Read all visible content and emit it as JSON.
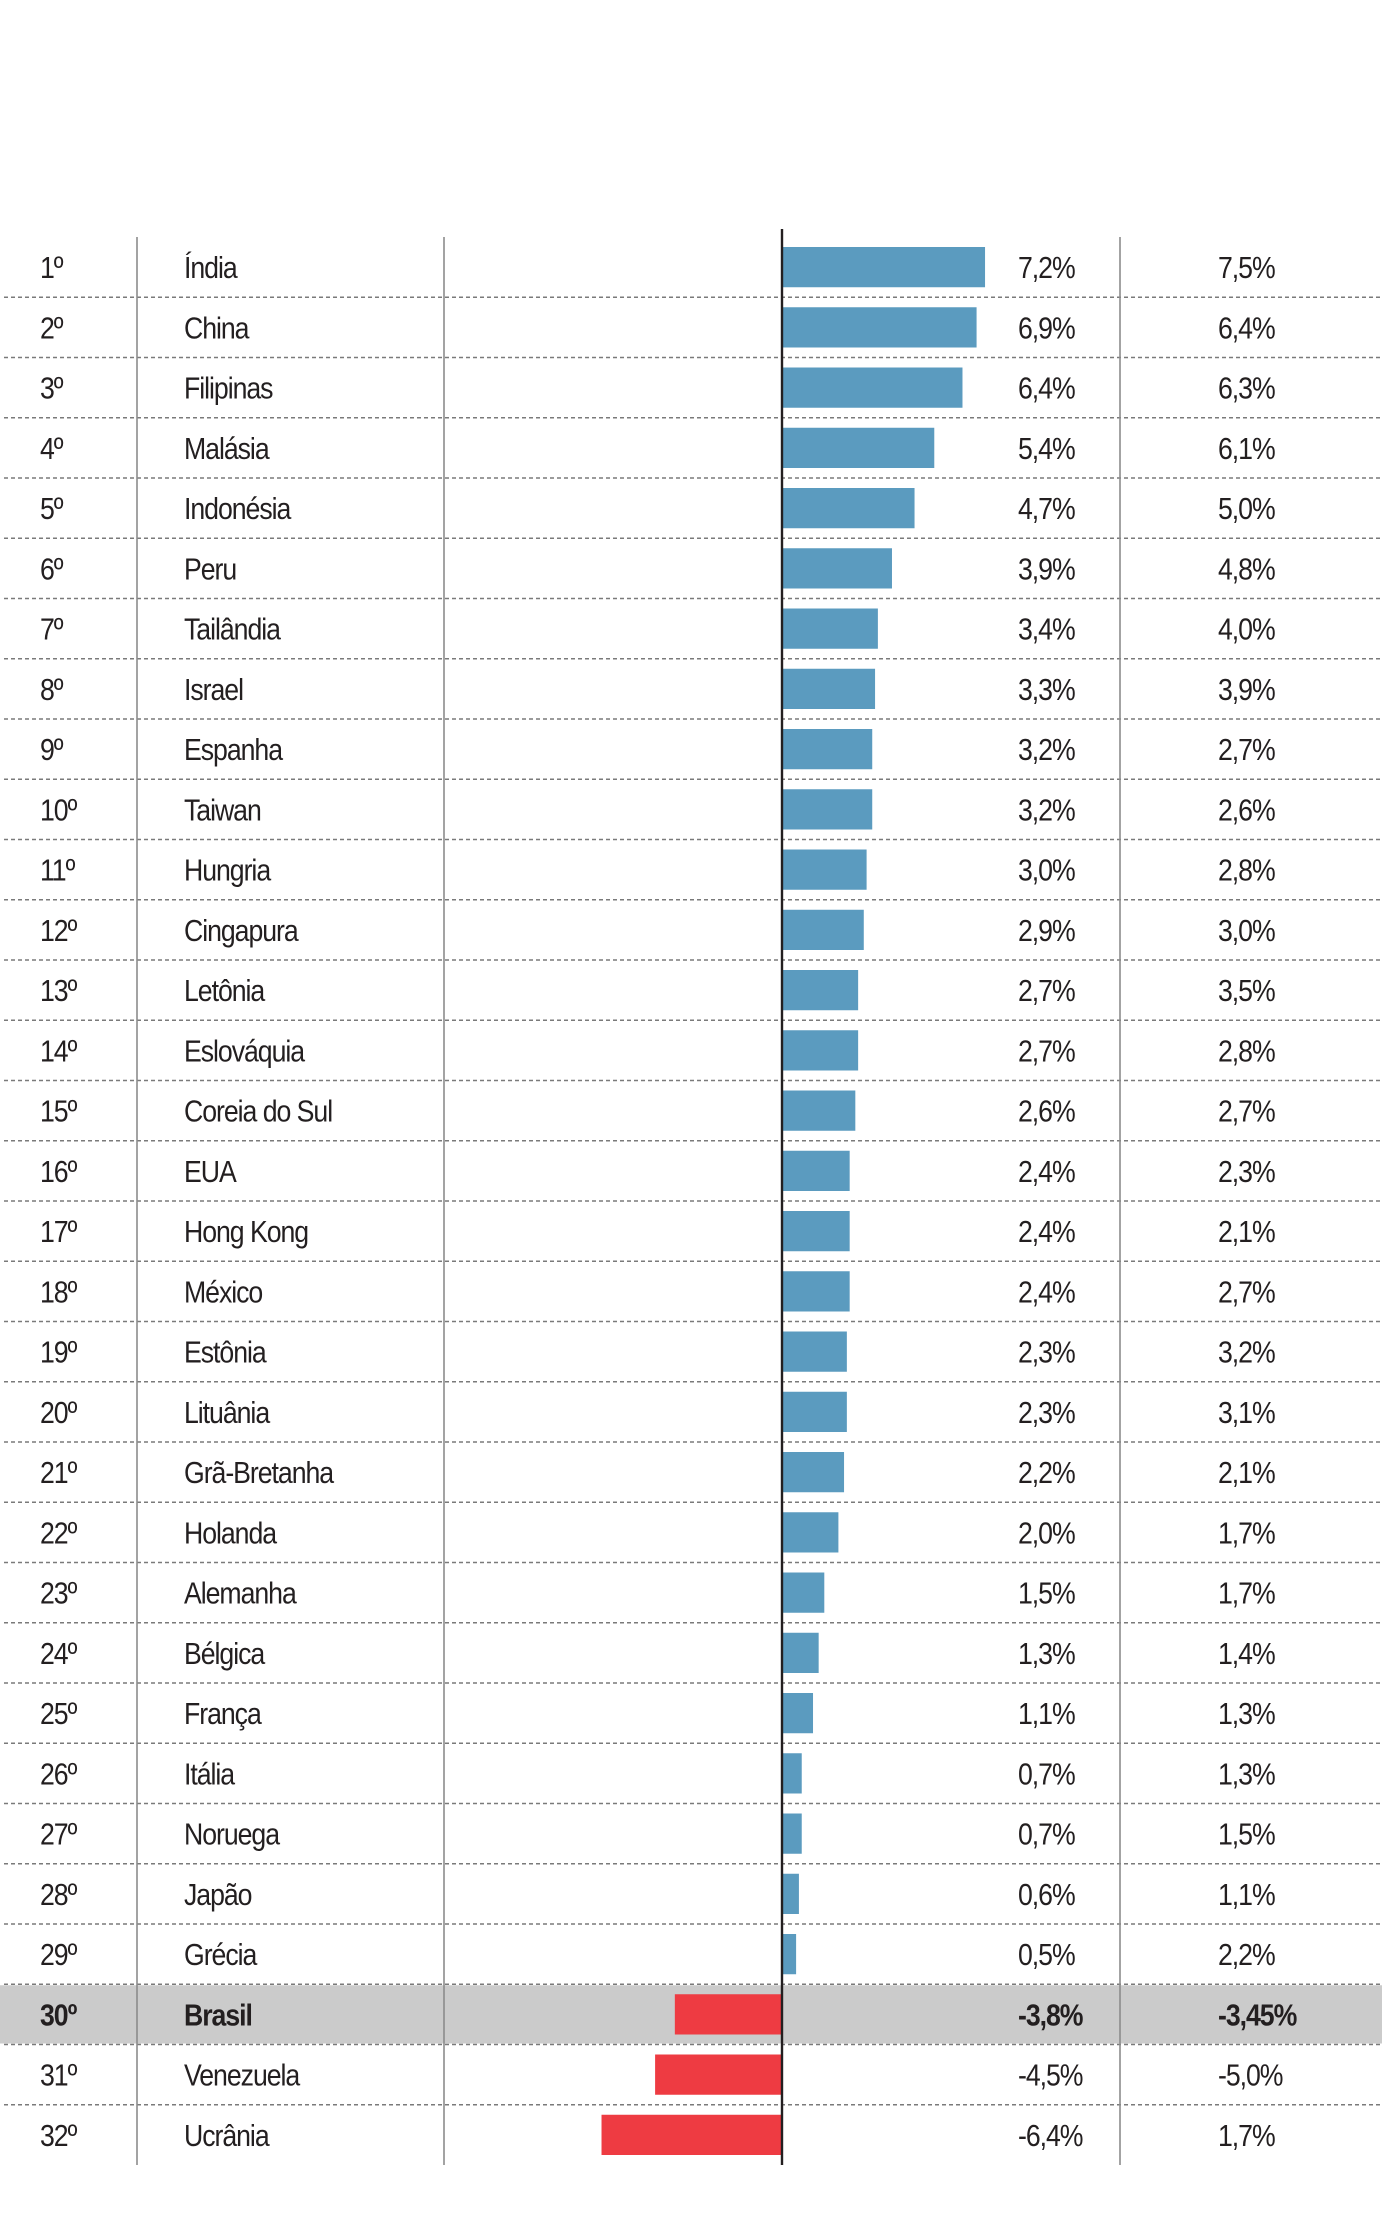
{
  "colors": {
    "positive": "#5b9bbf",
    "negative": "#ee3b42",
    "highlight_row": "#cbcbcb",
    "text": "#231f20",
    "grid": "#7a7a7a"
  },
  "chart_data": {
    "type": "bar",
    "orientation": "horizontal",
    "highlight": "Brasil",
    "rows": [
      {
        "rank": "1º",
        "country": "Índia",
        "value": 7.2,
        "value_label": "7,2%",
        "value2_label": "7,5%"
      },
      {
        "rank": "2º",
        "country": "China",
        "value": 6.9,
        "value_label": "6,9%",
        "value2_label": "6,4%"
      },
      {
        "rank": "3º",
        "country": "Filipinas",
        "value": 6.4,
        "value_label": "6,4%",
        "value2_label": "6,3%"
      },
      {
        "rank": "4º",
        "country": "Malásia",
        "value": 5.4,
        "value_label": "5,4%",
        "value2_label": "6,1%"
      },
      {
        "rank": "5º",
        "country": "Indonésia",
        "value": 4.7,
        "value_label": "4,7%",
        "value2_label": "5,0%"
      },
      {
        "rank": "6º",
        "country": "Peru",
        "value": 3.9,
        "value_label": "3,9%",
        "value2_label": "4,8%"
      },
      {
        "rank": "7º",
        "country": "Tailândia",
        "value": 3.4,
        "value_label": "3,4%",
        "value2_label": "4,0%"
      },
      {
        "rank": "8º",
        "country": "Israel",
        "value": 3.3,
        "value_label": "3,3%",
        "value2_label": "3,9%"
      },
      {
        "rank": "9º",
        "country": "Espanha",
        "value": 3.2,
        "value_label": "3,2%",
        "value2_label": "2,7%"
      },
      {
        "rank": "10º",
        "country": "Taiwan",
        "value": 3.2,
        "value_label": "3,2%",
        "value2_label": "2,6%"
      },
      {
        "rank": "11º",
        "country": "Hungria",
        "value": 3.0,
        "value_label": "3,0%",
        "value2_label": "2,8%"
      },
      {
        "rank": "12º",
        "country": "Cingapura",
        "value": 2.9,
        "value_label": "2,9%",
        "value2_label": "3,0%"
      },
      {
        "rank": "13º",
        "country": "Letônia",
        "value": 2.7,
        "value_label": "2,7%",
        "value2_label": "3,5%"
      },
      {
        "rank": "14º",
        "country": "Eslováquia",
        "value": 2.7,
        "value_label": "2,7%",
        "value2_label": "2,8%"
      },
      {
        "rank": "15º",
        "country": "Coreia do Sul",
        "value": 2.6,
        "value_label": "2,6%",
        "value2_label": "2,7%"
      },
      {
        "rank": "16º",
        "country": "EUA",
        "value": 2.4,
        "value_label": "2,4%",
        "value2_label": "2,3%"
      },
      {
        "rank": "17º",
        "country": "Hong Kong",
        "value": 2.4,
        "value_label": "2,4%",
        "value2_label": "2,1%"
      },
      {
        "rank": "18º",
        "country": "México",
        "value": 2.4,
        "value_label": "2,4%",
        "value2_label": "2,7%"
      },
      {
        "rank": "19º",
        "country": "Estônia",
        "value": 2.3,
        "value_label": "2,3%",
        "value2_label": "3,2%"
      },
      {
        "rank": "20º",
        "country": "Lituânia",
        "value": 2.3,
        "value_label": "2,3%",
        "value2_label": "3,1%"
      },
      {
        "rank": "21º",
        "country": "Grã-Bretanha",
        "value": 2.2,
        "value_label": "2,2%",
        "value2_label": "2,1%"
      },
      {
        "rank": "22º",
        "country": "Holanda",
        "value": 2.0,
        "value_label": "2,0%",
        "value2_label": "1,7%"
      },
      {
        "rank": "23º",
        "country": "Alemanha",
        "value": 1.5,
        "value_label": "1,5%",
        "value2_label": "1,7%"
      },
      {
        "rank": "24º",
        "country": "Bélgica",
        "value": 1.3,
        "value_label": "1,3%",
        "value2_label": "1,4%"
      },
      {
        "rank": "25º",
        "country": "França",
        "value": 1.1,
        "value_label": "1,1%",
        "value2_label": "1,3%"
      },
      {
        "rank": "26º",
        "country": "Itália",
        "value": 0.7,
        "value_label": "0,7%",
        "value2_label": "1,3%"
      },
      {
        "rank": "27º",
        "country": "Noruega",
        "value": 0.7,
        "value_label": "0,7%",
        "value2_label": "1,5%"
      },
      {
        "rank": "28º",
        "country": "Japão",
        "value": 0.6,
        "value_label": "0,6%",
        "value2_label": "1,1%"
      },
      {
        "rank": "29º",
        "country": "Grécia",
        "value": 0.5,
        "value_label": "0,5%",
        "value2_label": "2,2%"
      },
      {
        "rank": "30º",
        "country": "Brasil",
        "value": -3.8,
        "value_label": "-3,8%",
        "value2_label": "-3,45%"
      },
      {
        "rank": "31º",
        "country": "Venezuela",
        "value": -4.5,
        "value_label": "-4,5%",
        "value2_label": "-5,0%"
      },
      {
        "rank": "32º",
        "country": "Ucrânia",
        "value": -6.4,
        "value_label": "-6,4%",
        "value2_label": "1,7%"
      }
    ]
  }
}
